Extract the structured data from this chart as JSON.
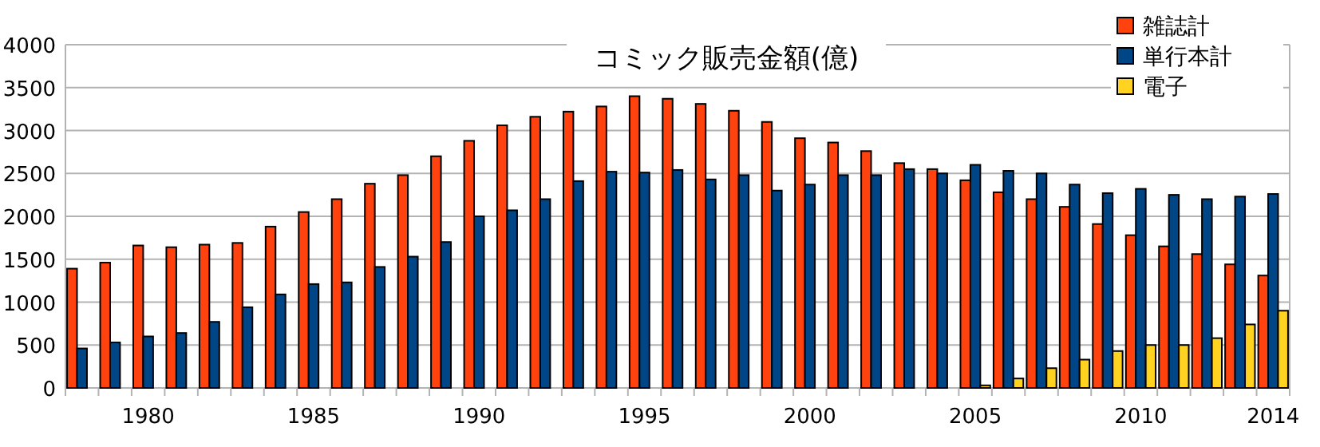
{
  "chart_data": {
    "type": "bar",
    "title": "コミック販売金額(億)",
    "categories": [
      null,
      null,
      "1980",
      null,
      null,
      null,
      null,
      "1985",
      null,
      null,
      null,
      null,
      "1990",
      null,
      null,
      null,
      null,
      "1995",
      null,
      null,
      null,
      null,
      "2000",
      null,
      null,
      null,
      null,
      "2005",
      null,
      null,
      null,
      null,
      "2010",
      null,
      null,
      null,
      "2014"
    ],
    "series": [
      {
        "name": "雑誌計",
        "color": "#ff420e",
        "values": [
          1390,
          1460,
          1660,
          1640,
          1670,
          1690,
          1880,
          2050,
          2200,
          2380,
          2480,
          2700,
          2880,
          3060,
          3160,
          3220,
          3280,
          3400,
          3370,
          3310,
          3230,
          3100,
          2910,
          2860,
          2760,
          2620,
          2550,
          2420,
          2280,
          2200,
          2110,
          1910,
          1780,
          1650,
          1560,
          1440,
          1310
        ]
      },
      {
        "name": "単行本計",
        "color": "#004586",
        "values": [
          460,
          530,
          600,
          640,
          770,
          940,
          1090,
          1210,
          1230,
          1410,
          1530,
          1700,
          2000,
          2070,
          2200,
          2410,
          2520,
          2510,
          2540,
          2430,
          2480,
          2300,
          2370,
          2480,
          2480,
          2550,
          2500,
          2600,
          2530,
          2500,
          2370,
          2270,
          2320,
          2250,
          2200,
          2230,
          2260
        ]
      },
      {
        "name": "電子",
        "color": "#ffd320",
        "values": [
          null,
          null,
          null,
          null,
          null,
          null,
          null,
          null,
          null,
          null,
          null,
          null,
          null,
          null,
          null,
          null,
          null,
          null,
          null,
          null,
          null,
          null,
          null,
          null,
          null,
          null,
          null,
          30,
          110,
          230,
          330,
          430,
          500,
          500,
          580,
          740,
          900
        ]
      }
    ],
    "ylim": [
      0,
      4000
    ],
    "yticks": [
      0,
      500,
      1000,
      1500,
      2000,
      2500,
      3000,
      3500,
      4000
    ],
    "grid": "y",
    "legend": "top right"
  }
}
